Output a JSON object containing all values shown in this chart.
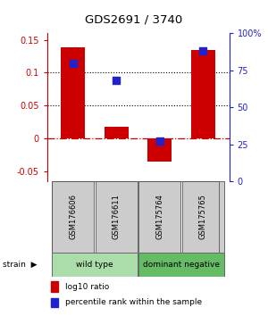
{
  "title": "GDS2691 / 3740",
  "samples": [
    "GSM176606",
    "GSM176611",
    "GSM175764",
    "GSM175765"
  ],
  "log10_ratio": [
    0.138,
    0.018,
    -0.035,
    0.135
  ],
  "percentile_rank": [
    0.795,
    0.68,
    0.27,
    0.88
  ],
  "groups": [
    {
      "label": "wild type",
      "indices": [
        0,
        1
      ],
      "color": "#aaddaa"
    },
    {
      "label": "dominant negative",
      "indices": [
        2,
        3
      ],
      "color": "#66bb66"
    }
  ],
  "ylim_left": [
    -0.065,
    0.16
  ],
  "ylim_right": [
    -0.065,
    0.16
  ],
  "pct_scale_min": 0.0,
  "pct_scale_max": 1.0,
  "yticks_left": [
    -0.05,
    0.0,
    0.05,
    0.1,
    0.15
  ],
  "ytick_labels_left": [
    "-0.05",
    "0",
    "0.05",
    "0.1",
    "0.15"
  ],
  "yticks_right_pct": [
    0.0,
    0.25,
    0.5,
    0.75,
    1.0
  ],
  "ytick_labels_right": [
    "0",
    "25",
    "50",
    "75",
    "100%"
  ],
  "bar_color": "#cc0000",
  "dot_color": "#2222cc",
  "hline_dotted_vals": [
    0.05,
    0.1
  ],
  "hline_zero_color": "#cc0000",
  "left_tick_color": "#cc0000",
  "right_tick_color": "#2222cc",
  "legend_bar": "log10 ratio",
  "legend_dot": "percentile rank within the sample",
  "bar_width": 0.55,
  "dot_size": 28
}
